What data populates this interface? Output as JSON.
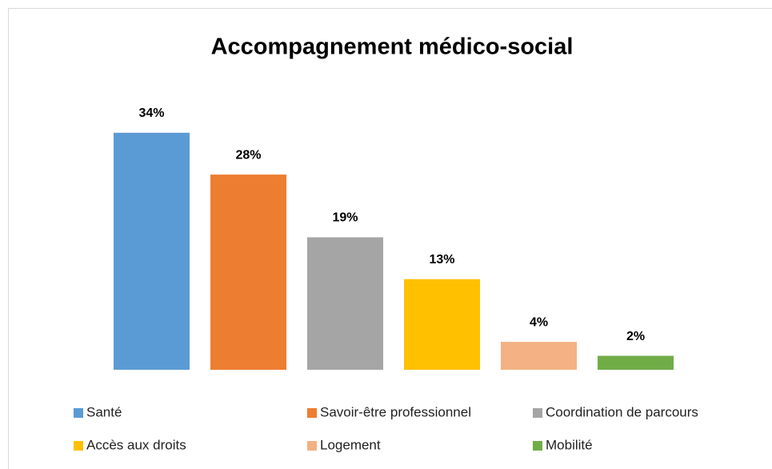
{
  "chart_data": {
    "type": "bar",
    "title": "Accompagnement médico-social",
    "categories": [
      "Santé",
      "Savoir-être professionnel",
      "Coordination de parcours",
      "Accès aux droits",
      "Logement",
      "Mobilité"
    ],
    "values": [
      34,
      28,
      19,
      13,
      4,
      2
    ],
    "value_labels": [
      "34%",
      "28%",
      "19%",
      "13%",
      "4%",
      "2%"
    ],
    "colors": [
      "#5b9bd5",
      "#ed7d31",
      "#a5a5a5",
      "#ffc000",
      "#f4b183",
      "#70ad47"
    ]
  }
}
